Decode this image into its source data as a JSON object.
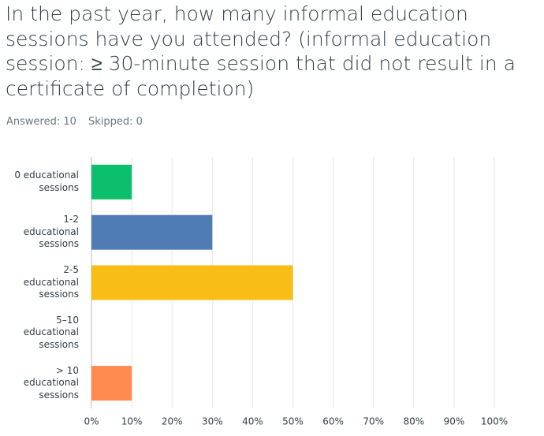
{
  "header": {
    "question": "In the past year, how many informal education sessions have you attended? (informal education session: ≥ 30-minute session that did not result in a certificate of completion)",
    "answered": "Answered: 10",
    "skipped": "Skipped: 0"
  },
  "chart_data": {
    "type": "hbar",
    "categories": [
      "0 educational sessions",
      "1-2 educational sessions",
      "2-5 educational sessions",
      "5–10 educational sessions",
      "> 10 educational sessions"
    ],
    "values": [
      10,
      30,
      50,
      0,
      10
    ],
    "colors": [
      "#0bbf6c",
      "#507cb6",
      "#f9be15",
      "#6bc8cd",
      "#ff8b4f"
    ],
    "xlim": [
      0,
      100
    ],
    "xticks": [
      {
        "value": 0,
        "label": "0%"
      },
      {
        "value": 10,
        "label": "10%"
      },
      {
        "value": 20,
        "label": "20%"
      },
      {
        "value": 30,
        "label": "30%"
      },
      {
        "value": 40,
        "label": "40%"
      },
      {
        "value": 50,
        "label": "50%"
      },
      {
        "value": 60,
        "label": "60%"
      },
      {
        "value": 70,
        "label": "70%"
      },
      {
        "value": 80,
        "label": "80%"
      },
      {
        "value": 90,
        "label": "90%"
      },
      {
        "value": 100,
        "label": "100%"
      }
    ],
    "grid": true
  }
}
